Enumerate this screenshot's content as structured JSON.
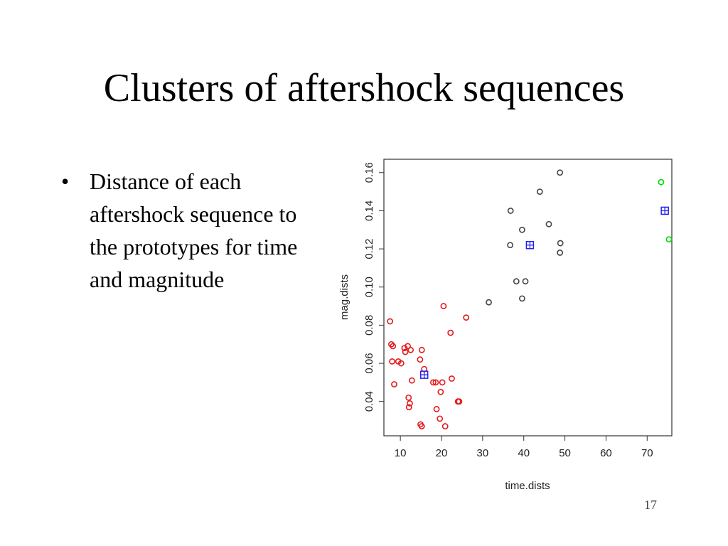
{
  "slide": {
    "title": "Clusters of aftershock sequences",
    "bullets": [
      "Distance of each aftershock sequence to the prototypes for time and magnitude"
    ],
    "page_number": "17"
  },
  "chart_data": {
    "type": "scatter",
    "title": "",
    "xlabel": "time.dists",
    "ylabel": "mag.dists",
    "xlim": [
      6,
      76
    ],
    "ylim": [
      0.022,
      0.167
    ],
    "xticks": [
      10,
      20,
      30,
      40,
      50,
      60,
      70
    ],
    "yticks": [
      0.04,
      0.06,
      0.08,
      0.1,
      0.12,
      0.14,
      0.16
    ],
    "ytick_labels": [
      "0.04",
      "0.06",
      "0.08",
      "0.10",
      "0.12",
      "0.14",
      "0.16"
    ],
    "grid": false,
    "series": [
      {
        "color": "#e41a1c",
        "points": [
          [
            7.5,
            0.082
          ],
          [
            7.8,
            0.07
          ],
          [
            8.2,
            0.069
          ],
          [
            8.0,
            0.061
          ],
          [
            8.5,
            0.049
          ],
          [
            9.5,
            0.061
          ],
          [
            10.2,
            0.06
          ],
          [
            11.0,
            0.068
          ],
          [
            11.2,
            0.066
          ],
          [
            11.8,
            0.069
          ],
          [
            12.5,
            0.067
          ],
          [
            12.0,
            0.042
          ],
          [
            12.3,
            0.039
          ],
          [
            12.1,
            0.037
          ],
          [
            12.8,
            0.051
          ],
          [
            14.8,
            0.062
          ],
          [
            15.2,
            0.067
          ],
          [
            15.8,
            0.057
          ],
          [
            14.9,
            0.028
          ],
          [
            15.2,
            0.027
          ],
          [
            18.0,
            0.05
          ],
          [
            18.6,
            0.05
          ],
          [
            18.8,
            0.036
          ],
          [
            19.6,
            0.031
          ],
          [
            19.8,
            0.045
          ],
          [
            20.2,
            0.05
          ],
          [
            20.5,
            0.09
          ],
          [
            20.9,
            0.027
          ],
          [
            22.2,
            0.076
          ],
          [
            22.5,
            0.052
          ],
          [
            24.0,
            0.04
          ],
          [
            24.3,
            0.04
          ],
          [
            26.0,
            0.084
          ]
        ]
      },
      {
        "color": "#444444",
        "points": [
          [
            31.5,
            0.092
          ],
          [
            36.8,
            0.14
          ],
          [
            36.7,
            0.122
          ],
          [
            38.2,
            0.103
          ],
          [
            39.6,
            0.13
          ],
          [
            39.6,
            0.094
          ],
          [
            40.4,
            0.103
          ],
          [
            43.9,
            0.15
          ],
          [
            46.1,
            0.133
          ],
          [
            48.8,
            0.16
          ],
          [
            48.9,
            0.123
          ],
          [
            48.8,
            0.118
          ]
        ]
      },
      {
        "color": "#00dd00",
        "points": [
          [
            73.4,
            0.155
          ],
          [
            75.3,
            0.125
          ]
        ]
      }
    ],
    "prototypes": {
      "color": "#2222ee",
      "points": [
        [
          15.8,
          0.054
        ],
        [
          41.5,
          0.122
        ],
        [
          74.3,
          0.14
        ]
      ]
    }
  }
}
